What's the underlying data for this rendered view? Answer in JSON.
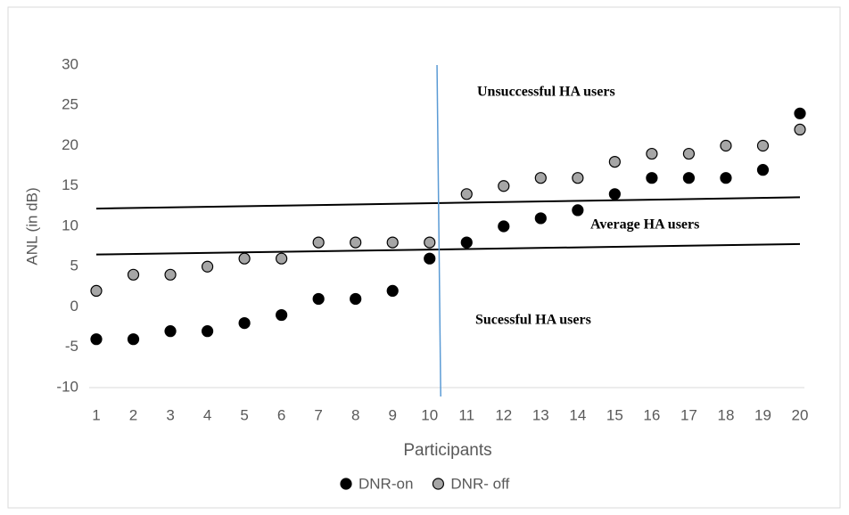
{
  "chart_data": {
    "type": "scatter",
    "x_label": "Participants",
    "y_label": "ANL (in dB)",
    "x": [
      1,
      2,
      3,
      4,
      5,
      6,
      7,
      8,
      9,
      10,
      11,
      12,
      13,
      14,
      15,
      16,
      17,
      18,
      19,
      20
    ],
    "series": [
      {
        "name": "DNR-on",
        "color": "#000000",
        "values": [
          -4,
          -4,
          -3,
          -3,
          -2,
          -1,
          1,
          1,
          2,
          6,
          8,
          10,
          11,
          12,
          14,
          16,
          16,
          16,
          17,
          24
        ]
      },
      {
        "name": "DNR- off",
        "color": "#a6a6a6",
        "values": [
          2,
          4,
          4,
          5,
          6,
          6,
          8,
          8,
          8,
          8,
          14,
          15,
          16,
          16,
          18,
          19,
          19,
          20,
          20,
          22
        ]
      }
    ],
    "xlim": [
      1,
      20
    ],
    "xticks": [
      1,
      2,
      3,
      4,
      5,
      6,
      7,
      8,
      9,
      10,
      11,
      12,
      13,
      14,
      15,
      16,
      17,
      18,
      19,
      20
    ],
    "ylim": [
      -10,
      30
    ],
    "yticks": [
      -10,
      -5,
      0,
      5,
      10,
      15,
      20,
      25,
      30
    ],
    "reference_lines": [
      {
        "x": [
          1,
          20
        ],
        "y": [
          12.2,
          13.6
        ],
        "color": "#000000"
      },
      {
        "x": [
          1,
          20
        ],
        "y": [
          6.5,
          7.8
        ],
        "color": "#000000"
      }
    ],
    "vline": {
      "x": [
        10.2,
        10.3
      ],
      "color": "#5b9bd5"
    },
    "annotations": [
      "Unsuccessful HA users",
      "Average HA users",
      "Sucessful HA users"
    ],
    "legend": "bottom"
  }
}
